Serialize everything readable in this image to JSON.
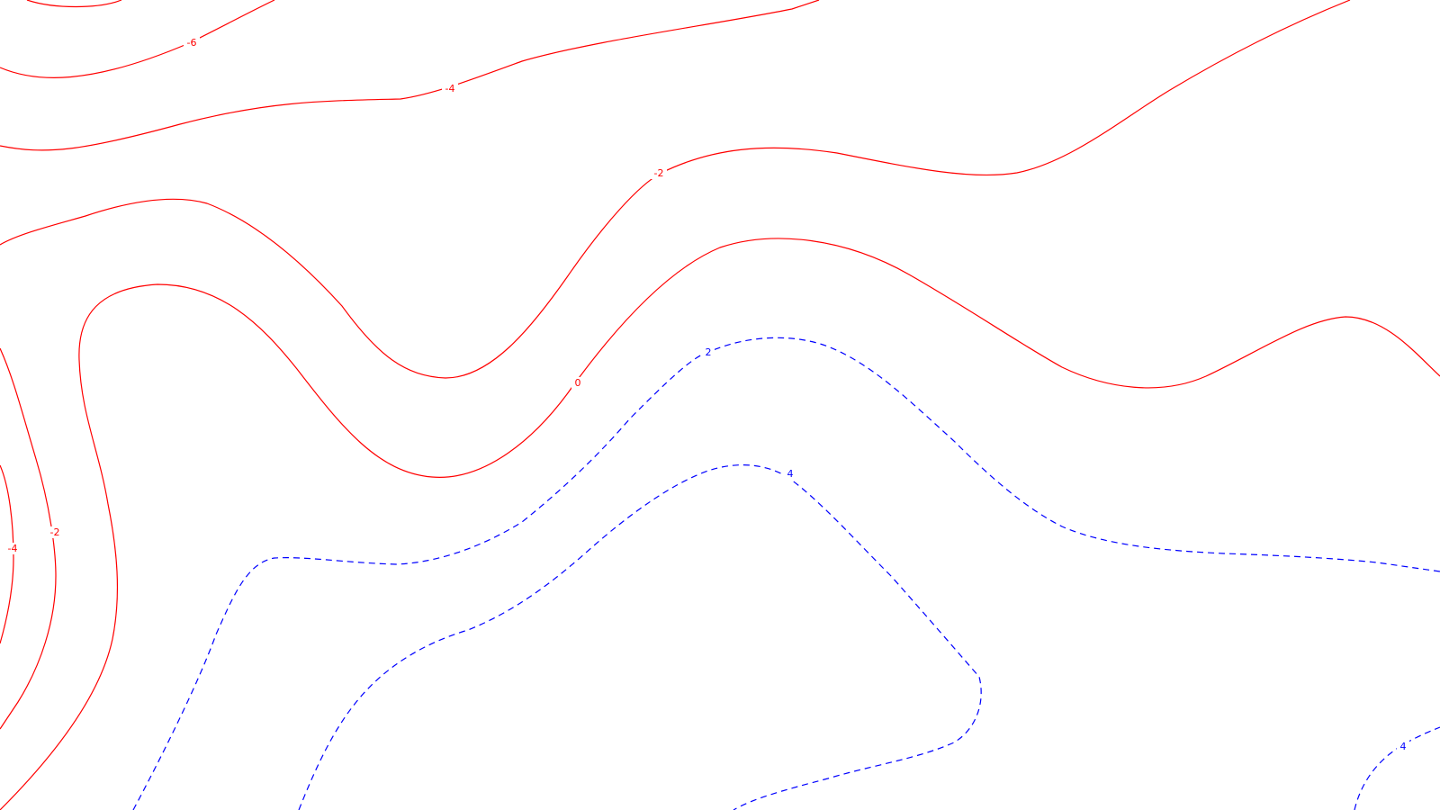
{
  "map": {
    "colors": {
      "background": "#ffffff",
      "negative": "#ff0000",
      "positive": "#0000ff"
    },
    "contours": [
      {
        "id": "neg6",
        "level": -6,
        "style": "solid"
      },
      {
        "id": "neg4-top",
        "level": -4,
        "style": "solid"
      },
      {
        "id": "neg2-top",
        "level": -2,
        "style": "solid"
      },
      {
        "id": "zero",
        "level": 0,
        "style": "solid"
      },
      {
        "id": "neg2-left",
        "level": -2,
        "style": "solid"
      },
      {
        "id": "neg4-left",
        "level": -4,
        "style": "solid"
      },
      {
        "id": "pos2",
        "level": 2,
        "style": "dashed"
      },
      {
        "id": "pos4",
        "level": 4,
        "style": "dashed"
      },
      {
        "id": "pos4-corner",
        "level": 4,
        "style": "dashed"
      }
    ],
    "labels": {
      "neg6": "-6",
      "neg4_top": "-4",
      "neg2_top": "-2",
      "zero": "0",
      "neg2_left": "-2",
      "neg4_left": "-4",
      "pos2": "2",
      "pos4": "4",
      "pos4_corner": "4"
    }
  }
}
